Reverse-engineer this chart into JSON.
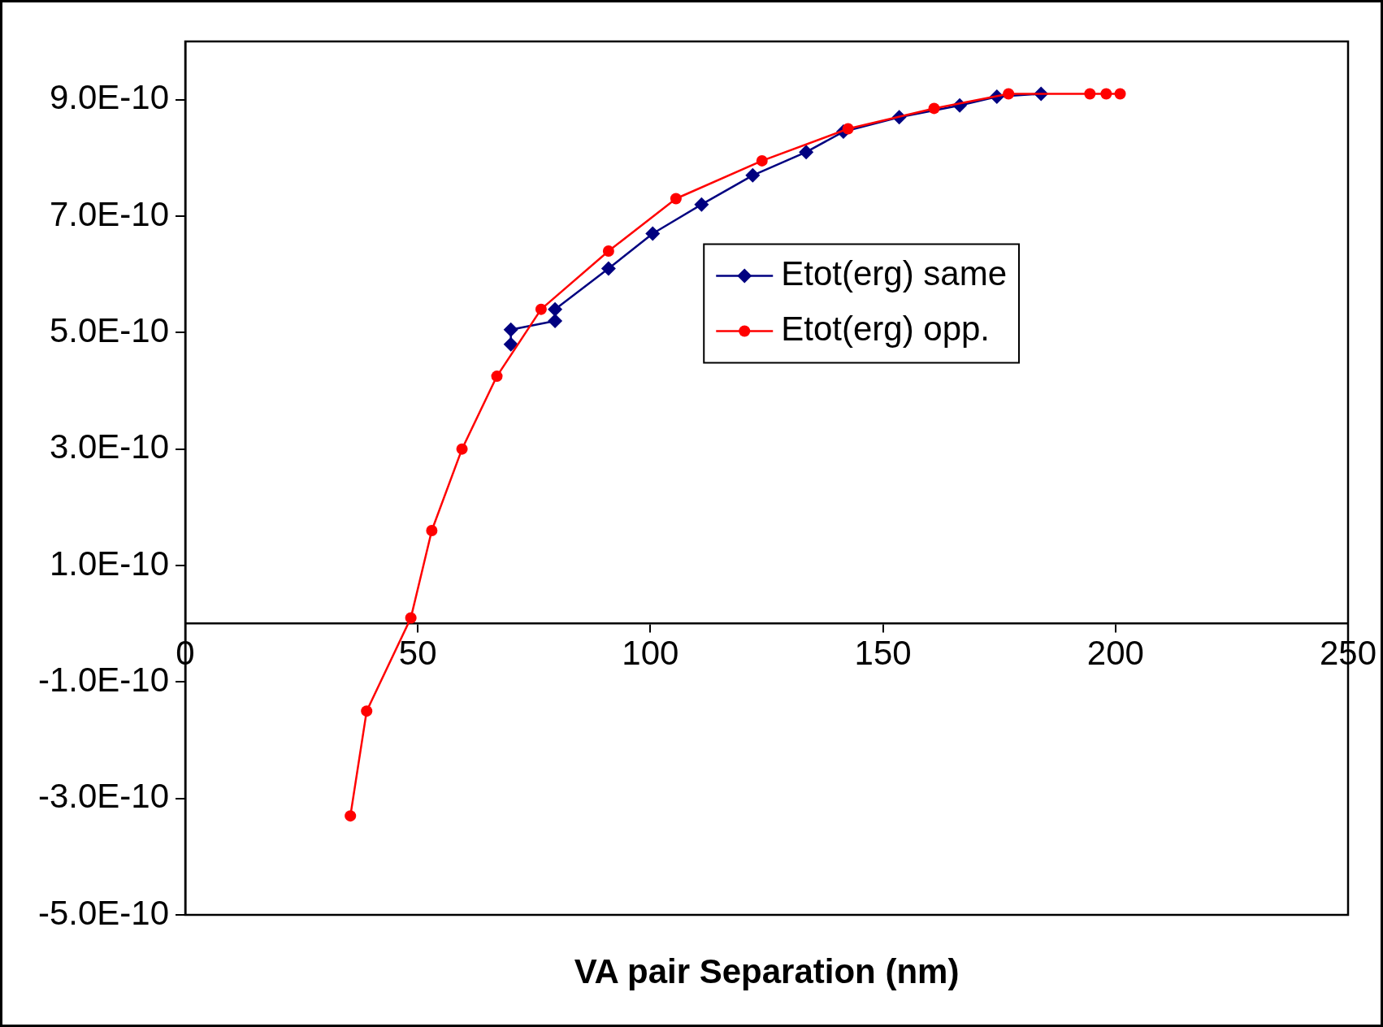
{
  "chart_data": {
    "type": "line",
    "xlabel": "VA pair Separation (nm)",
    "xlim": [
      0,
      250
    ],
    "xticks": [
      0,
      50,
      100,
      150,
      200,
      250
    ],
    "ylim": [
      -5e-10,
      1e-09
    ],
    "yticks": [
      {
        "value": -5e-10,
        "label": "-5.0E-10"
      },
      {
        "value": -3e-10,
        "label": "-3.0E-10"
      },
      {
        "value": -1e-10,
        "label": "-1.0E-10"
      },
      {
        "value": 1e-10,
        "label": "1.0E-10"
      },
      {
        "value": 3e-10,
        "label": "3.0E-10"
      },
      {
        "value": 5e-10,
        "label": "5.0E-10"
      },
      {
        "value": 7e-10,
        "label": "7.0E-10"
      },
      {
        "value": 9e-10,
        "label": "9.0E-10"
      }
    ],
    "grid": false,
    "legend": "right",
    "line_style": "solid",
    "series": [
      {
        "name": "Etot(erg) same",
        "color": "#000080",
        "marker": "diamond",
        "x": [
          70,
          70,
          79.5,
          79.5,
          91,
          100.5,
          111,
          122,
          133.5,
          141.5,
          153.5,
          166.5,
          174.5,
          184
        ],
        "values": [
          4.8e-10,
          5.05e-10,
          5.2e-10,
          5.4e-10,
          6.1e-10,
          6.7e-10,
          7.2e-10,
          7.7e-10,
          8.1e-10,
          8.45e-10,
          8.7e-10,
          8.9e-10,
          9.05e-10,
          9.1e-10
        ]
      },
      {
        "name": "Etot(erg) opp.",
        "color": "#ff0000",
        "marker": "circle",
        "x": [
          35.5,
          39,
          48.5,
          53,
          59.5,
          67,
          76.5,
          91,
          105.5,
          124,
          142.5,
          161,
          177,
          194.5,
          198,
          201
        ],
        "values": [
          -3.3e-10,
          -1.5e-10,
          1e-11,
          1.6e-10,
          3e-10,
          4.25e-10,
          5.4e-10,
          6.4e-10,
          7.3e-10,
          7.95e-10,
          8.5e-10,
          8.85e-10,
          9.1e-10,
          9.1e-10,
          9.1e-10,
          9.1e-10
        ]
      }
    ]
  }
}
